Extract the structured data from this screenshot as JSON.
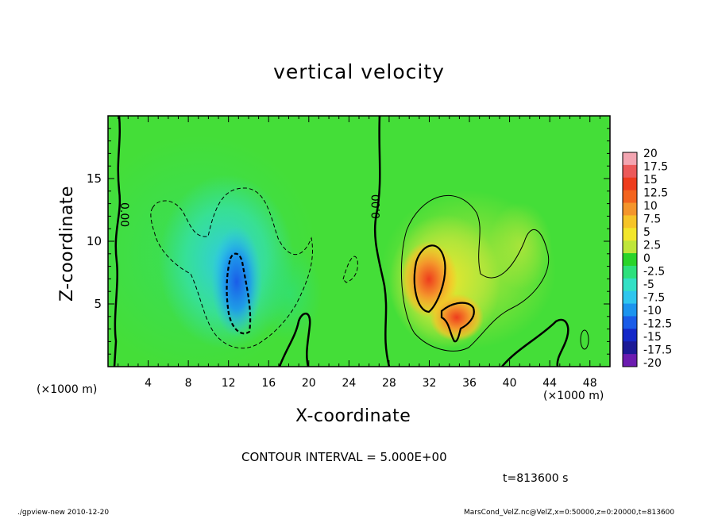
{
  "footer": {
    "left": "./gpview-new  2010-12-20",
    "right": "MarsCond_VelZ.nc@VelZ,x=0:50000,z=0:20000,t=813600"
  },
  "annotations": {
    "contour_interval": "CONTOUR INTERVAL = 5.000E+00",
    "time": "t=813600 s",
    "x_unit_left": "(×1000 m)",
    "x_unit_right": "(×1000 m)",
    "zero_label": "0.00"
  },
  "chart_data": {
    "type": "heatmap",
    "title": "vertical velocity",
    "xlabel": "X-coordinate",
    "ylabel": "Z-coordinate",
    "xlim": [
      0,
      50
    ],
    "ylim": [
      0,
      20
    ],
    "x_ticks": [
      4,
      8,
      12,
      16,
      20,
      24,
      28,
      32,
      36,
      40,
      44,
      48
    ],
    "y_ticks": [
      5,
      10,
      15
    ],
    "grid": false,
    "contour_interval": 5,
    "colorbar": {
      "labels": [
        "20",
        "17.5",
        "15",
        "12.5",
        "10",
        "7.5",
        "5",
        "2.5",
        "0",
        "-2.5",
        "-5",
        "-7.5",
        "-10",
        "-12.5",
        "-15",
        "-17.5",
        "-20"
      ],
      "colors": [
        "#f3a5b1",
        "#ec5a5a",
        "#ee3c1d",
        "#f3641e",
        "#f4952b",
        "#f6c428",
        "#f2e62b",
        "#bfe63a",
        "#2ad42a",
        "#2ee07c",
        "#33e0c5",
        "#2fc6ee",
        "#1c94ee",
        "#1a5ce8",
        "#1428c8",
        "#1c1a96",
        "#6c1cb0"
      ]
    },
    "features": [
      {
        "kind": "downdraft",
        "x": 12.8,
        "z": 7,
        "peak": -10
      },
      {
        "kind": "updraft",
        "x": 31.5,
        "z": 7.5,
        "peak": 15
      },
      {
        "kind": "updraft",
        "x": 34.5,
        "z": 4,
        "peak": 12
      }
    ]
  }
}
